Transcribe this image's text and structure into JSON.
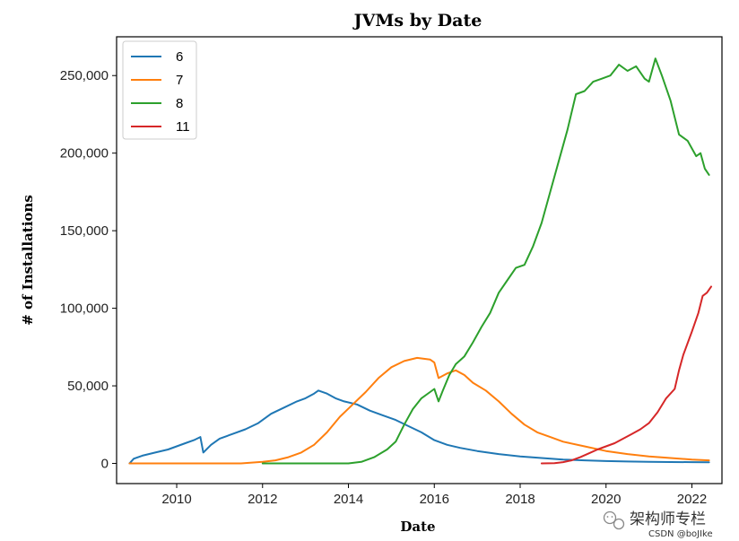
{
  "chart_data": {
    "type": "line",
    "title": "JVMs by Date",
    "xlabel": "Date",
    "ylabel": "# of Installations",
    "xlim": [
      2008.6,
      2022.7
    ],
    "ylim": [
      -13000,
      275000
    ],
    "x_ticks": [
      2010,
      2012,
      2014,
      2016,
      2018,
      2020,
      2022
    ],
    "x_tick_labels": [
      "2010",
      "2012",
      "2014",
      "2016",
      "2018",
      "2020",
      "2022"
    ],
    "y_ticks": [
      0,
      50000,
      100000,
      150000,
      200000,
      250000
    ],
    "y_tick_labels": [
      "0",
      "50,000",
      "100,000",
      "150,000",
      "200,000",
      "250,000"
    ],
    "legend_position": "top-left",
    "series": [
      {
        "name": "6",
        "color": "#1f77b4",
        "points": [
          [
            2008.9,
            0
          ],
          [
            2009.0,
            3000
          ],
          [
            2009.2,
            5000
          ],
          [
            2009.5,
            7000
          ],
          [
            2009.8,
            9000
          ],
          [
            2010.0,
            11000
          ],
          [
            2010.2,
            13000
          ],
          [
            2010.4,
            15000
          ],
          [
            2010.55,
            17000
          ],
          [
            2010.62,
            7000
          ],
          [
            2010.8,
            12000
          ],
          [
            2011.0,
            16000
          ],
          [
            2011.3,
            19000
          ],
          [
            2011.6,
            22000
          ],
          [
            2011.9,
            26000
          ],
          [
            2012.2,
            32000
          ],
          [
            2012.5,
            36000
          ],
          [
            2012.8,
            40000
          ],
          [
            2013.0,
            42000
          ],
          [
            2013.2,
            45000
          ],
          [
            2013.3,
            47000
          ],
          [
            2013.5,
            45000
          ],
          [
            2013.7,
            42000
          ],
          [
            2013.9,
            40000
          ],
          [
            2014.2,
            38000
          ],
          [
            2014.5,
            34000
          ],
          [
            2014.8,
            31000
          ],
          [
            2015.1,
            28000
          ],
          [
            2015.4,
            24000
          ],
          [
            2015.7,
            20000
          ],
          [
            2016.0,
            15000
          ],
          [
            2016.3,
            12000
          ],
          [
            2016.6,
            10000
          ],
          [
            2017.0,
            8000
          ],
          [
            2017.5,
            6000
          ],
          [
            2018.0,
            4500
          ],
          [
            2018.5,
            3500
          ],
          [
            2019.0,
            2500
          ],
          [
            2019.5,
            2000
          ],
          [
            2020.0,
            1500
          ],
          [
            2020.5,
            1200
          ],
          [
            2021.0,
            1000
          ],
          [
            2021.5,
            900
          ],
          [
            2022.0,
            800
          ],
          [
            2022.4,
            700
          ]
        ]
      },
      {
        "name": "7",
        "color": "#ff7f0e",
        "points": [
          [
            2008.9,
            0
          ],
          [
            2010.0,
            0
          ],
          [
            2011.0,
            0
          ],
          [
            2011.5,
            0
          ],
          [
            2012.0,
            1000
          ],
          [
            2012.3,
            2000
          ],
          [
            2012.6,
            4000
          ],
          [
            2012.9,
            7000
          ],
          [
            2013.2,
            12000
          ],
          [
            2013.5,
            20000
          ],
          [
            2013.8,
            30000
          ],
          [
            2014.1,
            38000
          ],
          [
            2014.4,
            46000
          ],
          [
            2014.7,
            55000
          ],
          [
            2015.0,
            62000
          ],
          [
            2015.3,
            66000
          ],
          [
            2015.6,
            68000
          ],
          [
            2015.9,
            67000
          ],
          [
            2016.0,
            65000
          ],
          [
            2016.1,
            55000
          ],
          [
            2016.3,
            58000
          ],
          [
            2016.5,
            60000
          ],
          [
            2016.7,
            57000
          ],
          [
            2016.9,
            52000
          ],
          [
            2017.2,
            47000
          ],
          [
            2017.5,
            40000
          ],
          [
            2017.8,
            32000
          ],
          [
            2018.1,
            25000
          ],
          [
            2018.4,
            20000
          ],
          [
            2018.7,
            17000
          ],
          [
            2019.0,
            14000
          ],
          [
            2019.5,
            11000
          ],
          [
            2020.0,
            8000
          ],
          [
            2020.5,
            6000
          ],
          [
            2021.0,
            4500
          ],
          [
            2021.5,
            3500
          ],
          [
            2022.0,
            2500
          ],
          [
            2022.4,
            2000
          ]
        ]
      },
      {
        "name": "8",
        "color": "#2ca02c",
        "points": [
          [
            2012.0,
            0
          ],
          [
            2013.0,
            0
          ],
          [
            2014.0,
            0
          ],
          [
            2014.3,
            1000
          ],
          [
            2014.6,
            4000
          ],
          [
            2014.9,
            9000
          ],
          [
            2015.1,
            14000
          ],
          [
            2015.3,
            25000
          ],
          [
            2015.5,
            35000
          ],
          [
            2015.7,
            42000
          ],
          [
            2015.9,
            46000
          ],
          [
            2016.0,
            48000
          ],
          [
            2016.1,
            40000
          ],
          [
            2016.2,
            47000
          ],
          [
            2016.35,
            57000
          ],
          [
            2016.5,
            64000
          ],
          [
            2016.7,
            69000
          ],
          [
            2016.9,
            78000
          ],
          [
            2017.1,
            88000
          ],
          [
            2017.3,
            97000
          ],
          [
            2017.5,
            110000
          ],
          [
            2017.7,
            118000
          ],
          [
            2017.9,
            126000
          ],
          [
            2018.1,
            128000
          ],
          [
            2018.3,
            140000
          ],
          [
            2018.5,
            155000
          ],
          [
            2018.7,
            175000
          ],
          [
            2018.9,
            195000
          ],
          [
            2019.1,
            215000
          ],
          [
            2019.3,
            238000
          ],
          [
            2019.5,
            240000
          ],
          [
            2019.7,
            246000
          ],
          [
            2019.9,
            248000
          ],
          [
            2020.1,
            250000
          ],
          [
            2020.3,
            257000
          ],
          [
            2020.5,
            253000
          ],
          [
            2020.7,
            256000
          ],
          [
            2020.9,
            248000
          ],
          [
            2021.0,
            246000
          ],
          [
            2021.15,
            261000
          ],
          [
            2021.3,
            250000
          ],
          [
            2021.5,
            234000
          ],
          [
            2021.7,
            212000
          ],
          [
            2021.9,
            208000
          ],
          [
            2022.1,
            198000
          ],
          [
            2022.2,
            200000
          ],
          [
            2022.3,
            190000
          ],
          [
            2022.4,
            186000
          ]
        ]
      },
      {
        "name": "11",
        "color": "#d62728",
        "points": [
          [
            2018.5,
            0
          ],
          [
            2018.8,
            200
          ],
          [
            2019.0,
            800
          ],
          [
            2019.2,
            2000
          ],
          [
            2019.4,
            4000
          ],
          [
            2019.6,
            6500
          ],
          [
            2019.8,
            9000
          ],
          [
            2020.0,
            11000
          ],
          [
            2020.2,
            13000
          ],
          [
            2020.4,
            16000
          ],
          [
            2020.6,
            19000
          ],
          [
            2020.8,
            22000
          ],
          [
            2021.0,
            26000
          ],
          [
            2021.2,
            33000
          ],
          [
            2021.4,
            42000
          ],
          [
            2021.6,
            48000
          ],
          [
            2021.7,
            60000
          ],
          [
            2021.8,
            70000
          ],
          [
            2022.0,
            85000
          ],
          [
            2022.15,
            97000
          ],
          [
            2022.25,
            108000
          ],
          [
            2022.35,
            110000
          ],
          [
            2022.45,
            114000
          ]
        ]
      }
    ]
  },
  "watermark": {
    "text": "架构师专栏",
    "credit": "CSDN @boJIke"
  }
}
